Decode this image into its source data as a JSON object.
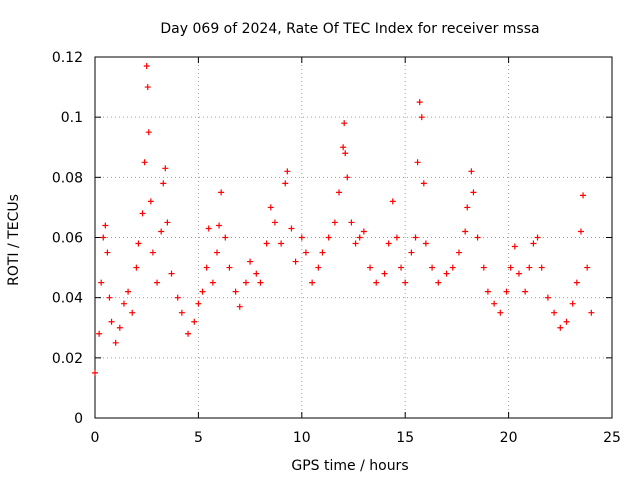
{
  "chart_data": {
    "type": "scatter",
    "title": "Day 069 of 2024, Rate Of TEC Index for receiver mssa",
    "xlabel": "GPS time / hours",
    "ylabel": "ROTI / TECUs",
    "xlim": [
      0,
      25
    ],
    "ylim": [
      0,
      0.12
    ],
    "xticks": [
      0,
      5,
      10,
      15,
      20,
      25
    ],
    "yticks": [
      0,
      0.02,
      0.04,
      0.06,
      0.08,
      0.1,
      0.12
    ],
    "xtick_labels": [
      "0",
      "5",
      "10",
      "15",
      "20",
      "25"
    ],
    "ytick_labels": [
      "0",
      "0.02",
      "0.04",
      "0.06",
      "0.08",
      "0.1",
      "0.12"
    ],
    "grid": true,
    "marker": "+",
    "color": "#ff0000",
    "series": [
      {
        "points": [
          [
            0.0,
            0.015
          ],
          [
            0.2,
            0.028
          ],
          [
            0.3,
            0.045
          ],
          [
            0.4,
            0.06
          ],
          [
            0.5,
            0.064
          ],
          [
            0.6,
            0.055
          ],
          [
            0.7,
            0.04
          ],
          [
            0.8,
            0.032
          ],
          [
            1.0,
            0.025
          ],
          [
            1.2,
            0.03
          ],
          [
            1.4,
            0.038
          ],
          [
            1.6,
            0.042
          ],
          [
            1.8,
            0.035
          ],
          [
            2.0,
            0.05
          ],
          [
            2.1,
            0.058
          ],
          [
            2.3,
            0.068
          ],
          [
            2.4,
            0.085
          ],
          [
            2.5,
            0.117
          ],
          [
            2.55,
            0.11
          ],
          [
            2.6,
            0.095
          ],
          [
            2.7,
            0.072
          ],
          [
            2.8,
            0.055
          ],
          [
            3.0,
            0.045
          ],
          [
            3.2,
            0.062
          ],
          [
            3.3,
            0.078
          ],
          [
            3.4,
            0.083
          ],
          [
            3.5,
            0.065
          ],
          [
            3.7,
            0.048
          ],
          [
            4.0,
            0.04
          ],
          [
            4.2,
            0.035
          ],
          [
            4.5,
            0.028
          ],
          [
            4.8,
            0.032
          ],
          [
            5.0,
            0.038
          ],
          [
            5.2,
            0.042
          ],
          [
            5.4,
            0.05
          ],
          [
            5.5,
            0.063
          ],
          [
            5.7,
            0.045
          ],
          [
            5.9,
            0.055
          ],
          [
            6.0,
            0.064
          ],
          [
            6.1,
            0.075
          ],
          [
            6.3,
            0.06
          ],
          [
            6.5,
            0.05
          ],
          [
            6.8,
            0.042
          ],
          [
            7.0,
            0.037
          ],
          [
            7.3,
            0.045
          ],
          [
            7.5,
            0.052
          ],
          [
            7.8,
            0.048
          ],
          [
            8.0,
            0.045
          ],
          [
            8.3,
            0.058
          ],
          [
            8.5,
            0.07
          ],
          [
            8.7,
            0.065
          ],
          [
            9.0,
            0.058
          ],
          [
            9.2,
            0.078
          ],
          [
            9.3,
            0.082
          ],
          [
            9.5,
            0.063
          ],
          [
            9.7,
            0.052
          ],
          [
            10.0,
            0.06
          ],
          [
            10.2,
            0.055
          ],
          [
            10.5,
            0.045
          ],
          [
            10.8,
            0.05
          ],
          [
            11.0,
            0.055
          ],
          [
            11.3,
            0.06
          ],
          [
            11.6,
            0.065
          ],
          [
            11.8,
            0.075
          ],
          [
            12.0,
            0.09
          ],
          [
            12.05,
            0.098
          ],
          [
            12.1,
            0.088
          ],
          [
            12.2,
            0.08
          ],
          [
            12.4,
            0.065
          ],
          [
            12.6,
            0.058
          ],
          [
            12.8,
            0.06
          ],
          [
            13.0,
            0.062
          ],
          [
            13.3,
            0.05
          ],
          [
            13.6,
            0.045
          ],
          [
            14.0,
            0.048
          ],
          [
            14.2,
            0.058
          ],
          [
            14.4,
            0.072
          ],
          [
            14.6,
            0.06
          ],
          [
            14.8,
            0.05
          ],
          [
            15.0,
            0.045
          ],
          [
            15.3,
            0.055
          ],
          [
            15.5,
            0.06
          ],
          [
            15.6,
            0.085
          ],
          [
            15.7,
            0.105
          ],
          [
            15.8,
            0.1
          ],
          [
            15.9,
            0.078
          ],
          [
            16.0,
            0.058
          ],
          [
            16.3,
            0.05
          ],
          [
            16.6,
            0.045
          ],
          [
            17.0,
            0.048
          ],
          [
            17.3,
            0.05
          ],
          [
            17.6,
            0.055
          ],
          [
            17.9,
            0.062
          ],
          [
            18.0,
            0.07
          ],
          [
            18.2,
            0.082
          ],
          [
            18.3,
            0.075
          ],
          [
            18.5,
            0.06
          ],
          [
            18.8,
            0.05
          ],
          [
            19.0,
            0.042
          ],
          [
            19.3,
            0.038
          ],
          [
            19.6,
            0.035
          ],
          [
            19.9,
            0.042
          ],
          [
            20.1,
            0.05
          ],
          [
            20.3,
            0.057
          ],
          [
            20.5,
            0.048
          ],
          [
            20.8,
            0.042
          ],
          [
            21.0,
            0.05
          ],
          [
            21.2,
            0.058
          ],
          [
            21.4,
            0.06
          ],
          [
            21.6,
            0.05
          ],
          [
            21.9,
            0.04
          ],
          [
            22.2,
            0.035
          ],
          [
            22.5,
            0.03
          ],
          [
            22.8,
            0.032
          ],
          [
            23.1,
            0.038
          ],
          [
            23.3,
            0.045
          ],
          [
            23.5,
            0.062
          ],
          [
            23.6,
            0.074
          ],
          [
            23.8,
            0.05
          ],
          [
            24.0,
            0.035
          ]
        ]
      }
    ]
  }
}
